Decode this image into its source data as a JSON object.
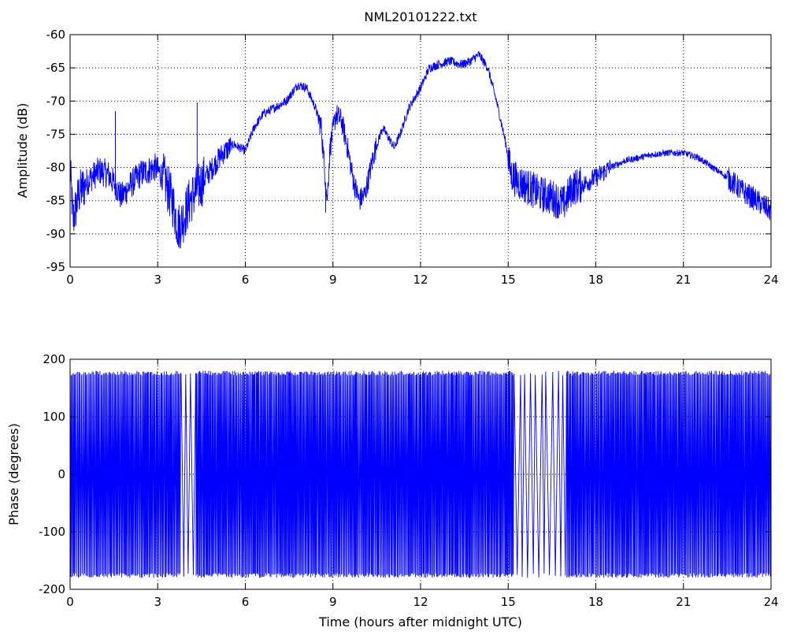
{
  "figure": {
    "title": "NML20101222.txt"
  },
  "chart_data": [
    {
      "type": "line",
      "name": "amplitude",
      "title": "NML20101222.txt",
      "xlabel": "",
      "ylabel": "Amplitude (dB)",
      "xlim": [
        0,
        24
      ],
      "ylim": [
        -95,
        -60
      ],
      "xticks": [
        0,
        3,
        6,
        9,
        12,
        15,
        18,
        21,
        24
      ],
      "yticks": [
        -95,
        -90,
        -85,
        -80,
        -75,
        -70,
        -65,
        -60
      ],
      "grid": true,
      "line_color": "#0000ff",
      "series": [
        {
          "x": [
            0,
            0.1,
            0.3,
            0.6,
            1.0,
            1.3,
            1.6,
            1.75,
            2.0,
            2.4,
            2.9,
            3.2,
            3.5,
            3.7,
            3.85,
            4.1,
            4.4,
            4.8,
            5.2,
            5.6,
            6.0,
            6.3,
            6.6,
            7.0,
            7.4,
            7.8,
            8.1,
            8.4,
            8.6,
            8.8,
            8.9,
            9.1,
            9.3,
            9.5,
            9.7,
            9.9,
            10.1,
            10.4,
            10.7,
            11.1,
            11.3,
            11.6,
            12.0,
            12.3,
            12.6,
            13.0,
            13.4,
            13.7,
            14.0,
            14.3,
            14.6,
            14.9,
            15.1,
            15.3,
            15.7,
            16.1,
            16.5,
            16.9,
            17.2,
            17.6,
            18.0,
            18.5,
            19.0,
            19.5,
            20.0,
            20.5,
            21.0,
            21.5,
            22.0,
            22.5,
            23.0,
            23.5,
            24.0
          ],
          "y": [
            -80,
            -88,
            -84,
            -82,
            -80.5,
            -81,
            -83,
            -84.5,
            -83,
            -81,
            -80,
            -81.5,
            -85,
            -89,
            -88,
            -85,
            -83,
            -80.5,
            -78,
            -76.5,
            -77.5,
            -74,
            -72,
            -71,
            -70,
            -67.5,
            -68,
            -71,
            -74,
            -85,
            -77,
            -72,
            -73,
            -77,
            -82,
            -85,
            -84,
            -78,
            -74,
            -77,
            -75,
            -71,
            -68,
            -65,
            -64.5,
            -64,
            -64.5,
            -64,
            -63,
            -65,
            -70,
            -76,
            -81,
            -82,
            -83,
            -84,
            -84.5,
            -85.5,
            -83,
            -82.5,
            -81.5,
            -80,
            -79,
            -78.5,
            -78,
            -77.8,
            -77.8,
            -78.5,
            -80,
            -81.5,
            -83.5,
            -85,
            -86.5
          ]
        }
      ]
    },
    {
      "type": "line",
      "name": "phase",
      "title": "",
      "xlabel": "Time (hours after midnight UTC)",
      "ylabel": "Phase (degrees)",
      "xlim": [
        0,
        24
      ],
      "ylim": [
        -200,
        200
      ],
      "xticks": [
        0,
        3,
        6,
        9,
        12,
        15,
        18,
        21,
        24
      ],
      "yticks": [
        -200,
        -100,
        0,
        100,
        200
      ],
      "grid": true,
      "line_color": "#0000ff",
      "phase_range": [
        -180,
        180
      ],
      "dense_intervals": [
        [
          0.0,
          3.8
        ],
        [
          4.3,
          15.2
        ],
        [
          17.0,
          24.0
        ]
      ],
      "sparse_intervals": [
        [
          3.8,
          4.3
        ],
        [
          15.2,
          17.0
        ]
      ]
    }
  ]
}
